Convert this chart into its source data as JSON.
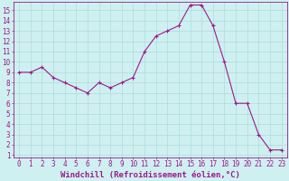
{
  "x": [
    0,
    1,
    2,
    3,
    4,
    5,
    6,
    7,
    8,
    9,
    10,
    11,
    12,
    13,
    14,
    15,
    16,
    17,
    18,
    19,
    20,
    21,
    22,
    23
  ],
  "y": [
    9,
    9,
    9.5,
    8.5,
    8,
    7.5,
    7,
    8,
    7.5,
    8,
    8.5,
    11,
    12.5,
    13,
    13.5,
    15.5,
    15.5,
    13.5,
    10,
    6,
    6,
    3,
    1.5,
    1.5
  ],
  "line_color": "#9b1a8a",
  "marker": "+",
  "bg_color": "#cff0f0",
  "grid_color": "#aadddd",
  "xlabel": "Windchill (Refroidissement éolien,°C)",
  "xlabel_color": "#9b1a8a",
  "tick_color": "#9b1a8a",
  "spine_color": "#9b1a8a",
  "ylim_min": 0.8,
  "ylim_max": 15.8,
  "xlim_min": -0.5,
  "xlim_max": 23.5,
  "yticks": [
    1,
    2,
    3,
    4,
    5,
    6,
    7,
    8,
    9,
    10,
    11,
    12,
    13,
    14,
    15
  ],
  "xticks": [
    0,
    1,
    2,
    3,
    4,
    5,
    6,
    7,
    8,
    9,
    10,
    11,
    12,
    13,
    14,
    15,
    16,
    17,
    18,
    19,
    20,
    21,
    22,
    23
  ],
  "tick_fontsize": 5.5,
  "xlabel_fontsize": 6.5,
  "linewidth": 0.8,
  "markersize": 3.5,
  "markeredgewidth": 0.8
}
